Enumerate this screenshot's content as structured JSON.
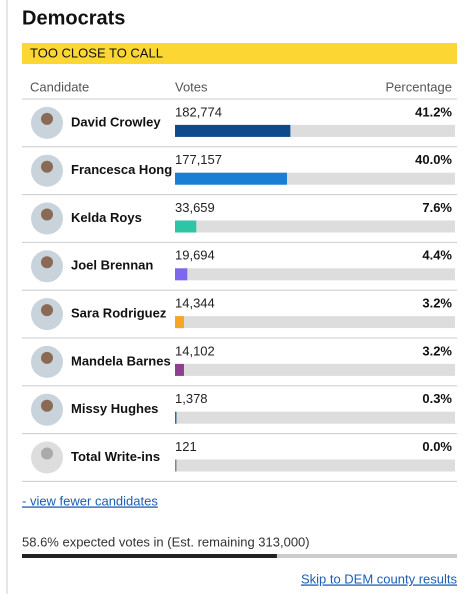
{
  "header": {
    "title": "Democrats",
    "status": "TOO CLOSE TO CALL"
  },
  "columns": [
    "Candidate",
    "Votes",
    "Percentage"
  ],
  "candidates": [
    {
      "name": "David Crowley",
      "votes": "182,774",
      "percentage": 41.2,
      "percentage_label": "41.2%",
      "color": "#0d4a8a"
    },
    {
      "name": "Francesca Hong",
      "votes": "177,157",
      "percentage": 40.0,
      "percentage_label": "40.0%",
      "color": "#1a7fd4"
    },
    {
      "name": "Kelda Roys",
      "votes": "33,659",
      "percentage": 7.6,
      "percentage_label": "7.6%",
      "color": "#2ec4a6"
    },
    {
      "name": "Joel Brennan",
      "votes": "19,694",
      "percentage": 4.4,
      "percentage_label": "4.4%",
      "color": "#7b68ee"
    },
    {
      "name": "Sara Rodriguez",
      "votes": "14,344",
      "percentage": 3.2,
      "percentage_label": "3.2%",
      "color": "#f5a623"
    },
    {
      "name": "Mandela Barnes",
      "votes": "14,102",
      "percentage": 3.2,
      "percentage_label": "3.2%",
      "color": "#8e3f8e"
    },
    {
      "name": "Missy Hughes",
      "votes": "1,378",
      "percentage": 0.3,
      "percentage_label": "0.3%",
      "color": "#2b6ea0"
    },
    {
      "name": "Total Write-ins",
      "votes": "121",
      "percentage": 0.0,
      "percentage_label": "0.0%",
      "color": "#888888"
    }
  ],
  "toggle_link": "- view fewer candidates",
  "progress": {
    "value": 58.6,
    "label": "58.6% expected votes in (Est. remaining 313,000)"
  },
  "footer_link": "Skip to DEM county results"
}
